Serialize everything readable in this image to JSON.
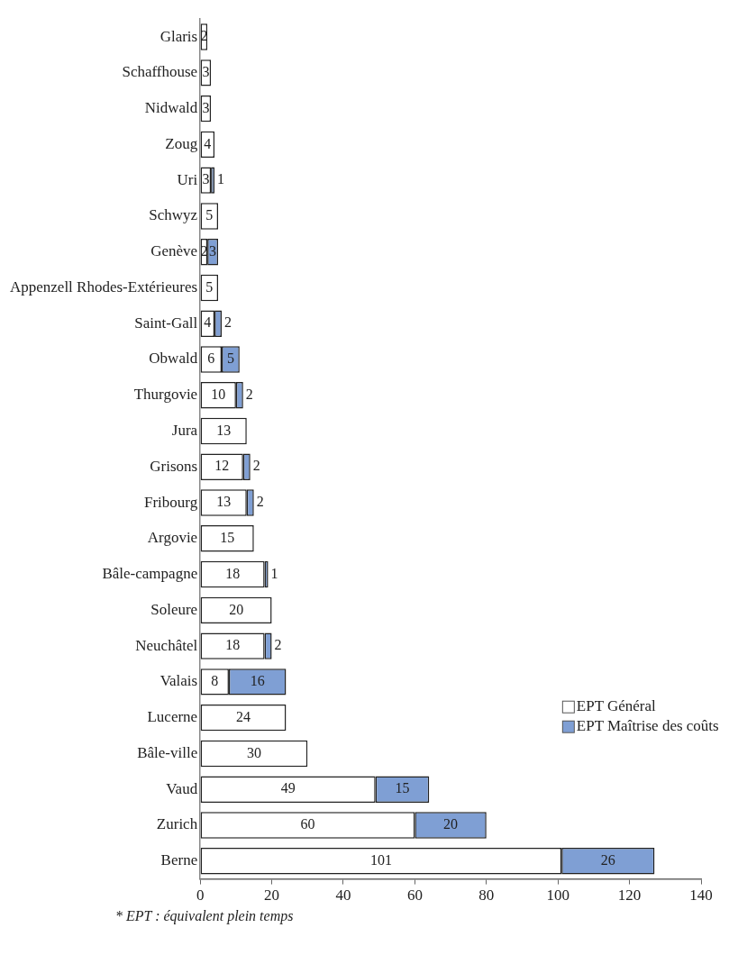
{
  "chart_data": {
    "type": "bar",
    "orientation": "horizontal",
    "stacked": true,
    "categories": [
      "Glaris",
      "Schaffhouse",
      "Nidwald",
      "Zoug",
      "Uri",
      "Schwyz",
      "Genève",
      "Appenzell Rhodes-Extérieures",
      "Saint-Gall",
      "Obwald",
      "Thurgovie",
      "Jura",
      "Grisons",
      "Fribourg",
      "Argovie",
      "Bâle-campagne",
      "Soleure",
      "Neuchâtel",
      "Valais",
      "Lucerne",
      "Bâle-ville",
      "Vaud",
      "Zurich",
      "Berne"
    ],
    "series": [
      {
        "name": "EPT Général",
        "color": "#ffffff",
        "values": [
          2,
          3,
          3,
          4,
          3,
          5,
          2,
          5,
          4,
          6,
          10,
          13,
          12,
          13,
          15,
          18,
          20,
          18,
          8,
          24,
          30,
          49,
          60,
          101
        ]
      },
      {
        "name": "EPT Maîtrise des coûts",
        "color": "#7f9fd4",
        "values": [
          null,
          null,
          null,
          null,
          1,
          null,
          3,
          null,
          2,
          5,
          2,
          null,
          2,
          2,
          null,
          1,
          null,
          2,
          16,
          null,
          null,
          15,
          20,
          26
        ]
      }
    ],
    "xlim": [
      0,
      140
    ],
    "xticks": [
      0,
      20,
      40,
      60,
      80,
      100,
      120,
      140
    ],
    "grid": false,
    "legend": "bottom right",
    "data_labels": true,
    "annotations": [
      "* EPT : équivalent plein temps"
    ]
  }
}
